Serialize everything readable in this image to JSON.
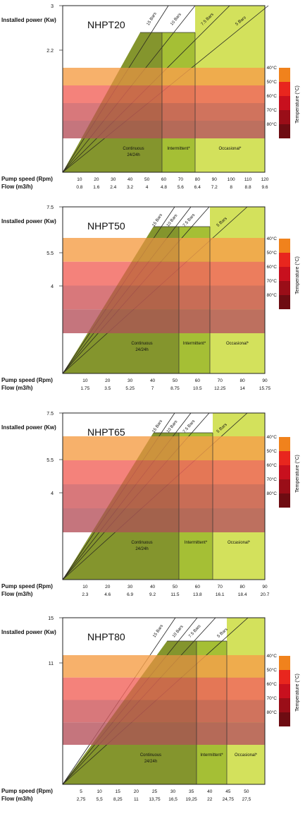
{
  "labels": {
    "installed_power": "Installed power (Kw)",
    "pump_speed": "Pump speed (Rpm)",
    "flow": "Flow (m3/h)",
    "continuous": "Continuous",
    "continuous_sub": "24/24h",
    "intermittent": "Intermittent*",
    "occasional": "Occasional*",
    "temperature_axis": "Temperature (°C)"
  },
  "temperature_scale": {
    "ticks": [
      "40°C",
      "50°C",
      "60°C",
      "70°C",
      "80°C"
    ],
    "band_colors": [
      "#f5a04a",
      "#f2665e",
      "#cf5a5e",
      "#b85760"
    ],
    "bar_colors": [
      "#f0821c",
      "#e8261e",
      "#c8101e",
      "#9a0e18",
      "#6e0c12"
    ]
  },
  "colors": {
    "green_light": "#d3e15c",
    "green_mid": "#a5bf35",
    "green_dark": "#8aa331",
    "olive": "#97a247"
  },
  "chart_data": [
    {
      "type": "area",
      "title": "NHPT20",
      "ylabel": "Installed power (Kw)",
      "y_ticks": [
        "3",
        "2.2"
      ],
      "pump_speed_ticks": [
        "10",
        "20",
        "30",
        "40",
        "50",
        "60",
        "70",
        "80",
        "90",
        "100",
        "110",
        "120"
      ],
      "flow_ticks": [
        "0.8",
        "1.6",
        "2.4",
        "3.2",
        "4",
        "4.8",
        "5.6",
        "6.4",
        "7.2",
        "8",
        "8.8",
        "9.6"
      ],
      "pressure_lines": [
        "15 Bars",
        "10 Bars",
        "7.5 Bars",
        "5 Bars"
      ],
      "zones": [
        "Continuous 24/24h",
        "Intermittent*",
        "Occasional*"
      ],
      "zone_limits_rpm": [
        59,
        80
      ]
    },
    {
      "type": "area",
      "title": "NHPT50",
      "ylabel": "Installed power (Kw)",
      "y_ticks": [
        "7.5",
        "5.5",
        "4"
      ],
      "pump_speed_ticks": [
        "10",
        "20",
        "30",
        "40",
        "50",
        "60",
        "70",
        "80",
        "90"
      ],
      "flow_ticks": [
        "1.75",
        "3.5",
        "5.25",
        "7",
        "8.75",
        "10.5",
        "12.25",
        "14",
        "15.75"
      ],
      "pressure_lines": [
        "15 Bars",
        "10 Bars",
        "7.5 Bars",
        "5 Bars"
      ],
      "zones": [
        "Continuous 24/24h",
        "Intermittent*",
        "Occasional*"
      ],
      "zone_limits_rpm": [
        53,
        67
      ]
    },
    {
      "type": "area",
      "title": "NHPT65",
      "ylabel": "Installed power (Kw)",
      "y_ticks": [
        "7.5",
        "5.5",
        "4"
      ],
      "pump_speed_ticks": [
        "10",
        "20",
        "30",
        "40",
        "50",
        "60",
        "70",
        "80",
        "90"
      ],
      "flow_ticks": [
        "2.3",
        "4.6",
        "6.9",
        "9.2",
        "11.5",
        "13.8",
        "16.1",
        "18.4",
        "20.7"
      ],
      "pressure_lines": [
        "15 Bars",
        "10 Bars",
        "7.5 Bars",
        "5 Bars"
      ],
      "zones": [
        "Continuous 24/24h",
        "Intermittent*",
        "Occasional*"
      ],
      "zone_limits_rpm": [
        53,
        67
      ]
    },
    {
      "type": "area",
      "title": "NHPT80",
      "ylabel": "Installed power (Kw)",
      "y_ticks": [
        "15",
        "11"
      ],
      "pump_speed_ticks": [
        "5",
        "10",
        "15",
        "20",
        "25",
        "30",
        "35",
        "40",
        "45",
        "50"
      ],
      "flow_ticks": [
        "2,75",
        "5,5",
        "8,25",
        "11",
        "13,75",
        "16,5",
        "19,25",
        "22",
        "24,75",
        "27,5"
      ],
      "pressure_lines": [
        "15 Bars",
        "10 Bars",
        "7.5 Bars",
        "5 Bars"
      ],
      "zones": [
        "Continuous 24/24h",
        "Intermittent*",
        "Occasional*"
      ],
      "zone_limits_rpm": [
        36,
        44
      ]
    }
  ]
}
